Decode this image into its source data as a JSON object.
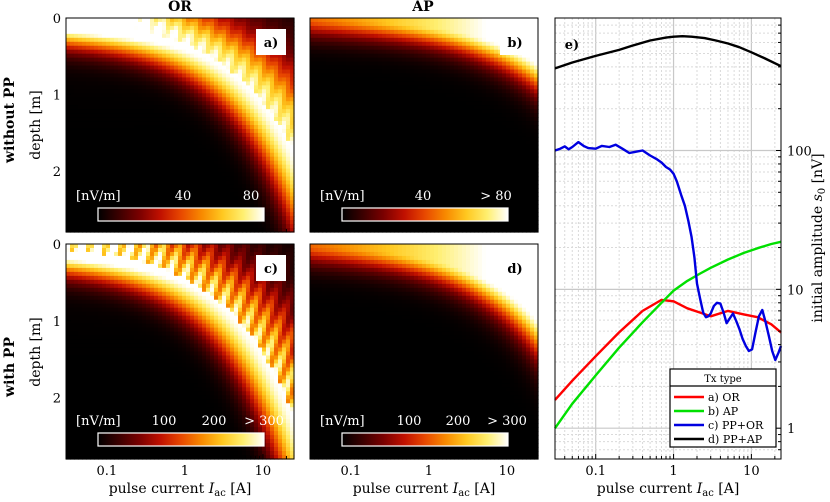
{
  "colors": {
    "hot_map": [
      "#000000",
      "#3b0000",
      "#7a0000",
      "#c01000",
      "#e84800",
      "#f88a00",
      "#ffc820",
      "#ffef70",
      "#ffffff"
    ],
    "or_line": "#ff0000",
    "ap_line": "#00e000",
    "pp_or_line": "#0000e0",
    "pp_ap_line": "#000000"
  },
  "column_titles": [
    "OR",
    "AP"
  ],
  "row_titles": [
    "without PP",
    "with PP"
  ],
  "chart_data": [
    {
      "type": "heatmap",
      "id": "a",
      "panel_label": "a)",
      "ylabel": "depth [m]",
      "xlabel": "",
      "xscale": "log",
      "xlim": [
        0.03,
        25
      ],
      "ylim": [
        0,
        2.8
      ],
      "yticks": [
        0,
        1,
        2
      ],
      "colorbar": {
        "unit": "[nV/m]",
        "ticks": [
          "40",
          "80"
        ],
        "range": [
          0,
          90
        ]
      },
      "pattern": {
        "kind": "or",
        "saturation_depth_at_1A_m": 0.35,
        "peak_nV_per_m": 85,
        "oscillation": 0.15
      }
    },
    {
      "type": "heatmap",
      "id": "b",
      "panel_label": "b)",
      "ylabel": "",
      "xlabel": "",
      "xscale": "log",
      "xlim": [
        0.03,
        25
      ],
      "ylim": [
        0,
        2.8
      ],
      "yticks": [
        0,
        1,
        2
      ],
      "colorbar": {
        "unit": "[nV/m]",
        "ticks": [
          "40",
          "> 80"
        ],
        "range": [
          0,
          90
        ]
      },
      "pattern": {
        "kind": "ap",
        "saturation_depth_at_1A_m": 0.12,
        "peak_nV_per_m": 95,
        "oscillation": 0
      }
    },
    {
      "type": "heatmap",
      "id": "c",
      "panel_label": "c)",
      "ylabel": "depth [m]",
      "xlabel": "pulse current I_ac [A]",
      "xscale": "log",
      "xlim": [
        0.03,
        25
      ],
      "ylim": [
        0,
        2.8
      ],
      "yticks": [
        0,
        1,
        2
      ],
      "xticks": [
        {
          "v": 0.1,
          "label": "0.1"
        },
        {
          "v": 1,
          "label": "1"
        },
        {
          "v": 10,
          "label": "10"
        }
      ],
      "colorbar": {
        "unit": "[nV/m]",
        "ticks": [
          "100",
          "200",
          "> 300"
        ],
        "range": [
          0,
          320
        ]
      },
      "pattern": {
        "kind": "or",
        "saturation_depth_at_1A_m": 0.45,
        "peak_nV_per_m": 330,
        "oscillation": 0.4
      }
    },
    {
      "type": "heatmap",
      "id": "d",
      "panel_label": "d)",
      "ylabel": "",
      "xlabel": "pulse current I_ac [A]",
      "xscale": "log",
      "xlim": [
        0.03,
        25
      ],
      "ylim": [
        0,
        2.8
      ],
      "yticks": [
        0,
        1,
        2
      ],
      "xticks": [
        {
          "v": 0.1,
          "label": "0.1"
        },
        {
          "v": 1,
          "label": "1"
        },
        {
          "v": 10,
          "label": "10"
        }
      ],
      "colorbar": {
        "unit": "[nV/m]",
        "ticks": [
          "100",
          "200",
          "> 300"
        ],
        "range": [
          0,
          320
        ]
      },
      "pattern": {
        "kind": "ap",
        "saturation_depth_at_1A_m": 0.2,
        "peak_nV_per_m": 300,
        "oscillation": 0.05
      }
    },
    {
      "type": "line",
      "id": "e",
      "panel_label": "e)",
      "xscale": "log",
      "yscale": "log",
      "xlim": [
        0.03,
        24
      ],
      "ylim": [
        0.6,
        900
      ],
      "xlabel": "pulse current I_ac [A]",
      "ylabel": "initial amplitude s_0 [nV]",
      "xticks": [
        {
          "v": 0.1,
          "label": "0.1"
        },
        {
          "v": 1,
          "label": "1"
        },
        {
          "v": 10,
          "label": "10"
        }
      ],
      "yticks": [
        {
          "v": 1,
          "label": "1"
        },
        {
          "v": 10,
          "label": "10"
        },
        {
          "v": 100,
          "label": "100"
        }
      ],
      "legend": {
        "title": "Tx type",
        "position": "bottom-right"
      },
      "series": [
        {
          "name": "a) OR",
          "color": "#ff0000",
          "x": [
            0.03,
            0.05,
            0.1,
            0.2,
            0.4,
            0.7,
            1.0,
            1.5,
            2.2,
            3,
            5,
            8,
            12,
            18,
            24
          ],
          "y": [
            1.6,
            2.2,
            3.3,
            4.9,
            7.0,
            8.4,
            8.2,
            7.3,
            6.8,
            6.4,
            7.0,
            6.6,
            6.3,
            5.6,
            4.9
          ]
        },
        {
          "name": "b) AP",
          "color": "#00e000",
          "x": [
            0.03,
            0.05,
            0.1,
            0.2,
            0.4,
            0.7,
            1.0,
            1.5,
            2.2,
            3,
            5,
            8,
            12,
            18,
            24
          ],
          "y": [
            1.0,
            1.5,
            2.4,
            3.8,
            5.8,
            8.0,
            9.8,
            11.5,
            13.0,
            14.3,
            16.4,
            18.3,
            19.8,
            21.2,
            22.0
          ]
        },
        {
          "name": "c) PP+OR",
          "color": "#0000e0",
          "x": [
            0.03,
            0.035,
            0.04,
            0.045,
            0.05,
            0.06,
            0.07,
            0.08,
            0.1,
            0.12,
            0.15,
            0.18,
            0.22,
            0.27,
            0.33,
            0.4,
            0.5,
            0.6,
            0.7,
            0.8,
            0.9,
            1.0,
            1.1,
            1.25,
            1.4,
            1.55,
            1.7,
            1.85,
            2.0,
            2.2,
            2.4,
            2.6,
            2.8,
            3.0,
            3.3,
            3.6,
            4.0,
            4.4,
            4.8,
            5.3,
            5.8,
            6.4,
            7.0,
            7.7,
            8.5,
            9.3,
            10.2,
            11.3,
            12.5,
            13.8,
            15.2,
            16.8,
            18.5,
            20.3,
            22.3,
            24
          ],
          "y": [
            100,
            103,
            107,
            102,
            106,
            115,
            108,
            104,
            103,
            108,
            106,
            110,
            103,
            96,
            98,
            100,
            92,
            87,
            82,
            76,
            73,
            68,
            60,
            48,
            40,
            31,
            24,
            17,
            11,
            8.5,
            6.8,
            6.3,
            6.4,
            6.7,
            7.6,
            8.0,
            7.9,
            6.8,
            5.7,
            6.2,
            6.7,
            5.9,
            5.2,
            4.4,
            3.9,
            3.6,
            3.7,
            4.9,
            6.4,
            7.1,
            5.8,
            4.6,
            3.6,
            3.1,
            3.5,
            3.9
          ]
        },
        {
          "name": "d) PP+AP",
          "color": "#000000",
          "x": [
            0.03,
            0.05,
            0.1,
            0.2,
            0.3,
            0.5,
            0.8,
            1.0,
            1.3,
            1.7,
            2.5,
            3.5,
            5,
            7,
            10,
            15,
            20,
            24
          ],
          "y": [
            390,
            430,
            480,
            530,
            570,
            620,
            650,
            660,
            665,
            660,
            645,
            620,
            590,
            555,
            510,
            460,
            425,
            405
          ]
        }
      ]
    }
  ]
}
